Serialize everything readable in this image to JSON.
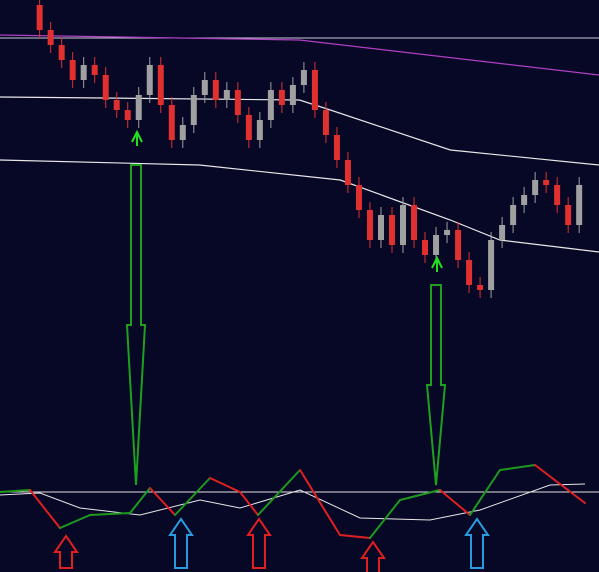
{
  "chart_data": [
    {
      "type": "candlestick",
      "ylim": [
        0,
        300
      ],
      "xlim": [
        -3.6,
        50.8
      ],
      "up_color": "#a0a0a0",
      "down_color": "#e03030",
      "open": [
        295,
        270,
        255,
        240,
        220,
        235,
        225,
        200,
        190,
        180,
        205,
        235,
        195,
        160,
        175,
        205,
        220,
        200,
        210,
        185,
        160,
        180,
        210,
        195,
        215,
        230,
        190,
        165,
        140,
        115,
        90,
        60,
        85,
        55,
        95,
        60,
        45,
        65,
        70,
        40,
        15,
        10,
        60,
        75,
        95,
        105,
        120,
        115,
        95,
        75
      ],
      "high": [
        303,
        278,
        263,
        248,
        243,
        243,
        233,
        208,
        198,
        213,
        243,
        243,
        203,
        183,
        213,
        228,
        228,
        218,
        218,
        193,
        188,
        218,
        218,
        223,
        238,
        238,
        198,
        173,
        148,
        123,
        98,
        93,
        93,
        103,
        103,
        68,
        73,
        78,
        78,
        48,
        23,
        68,
        83,
        103,
        113,
        128,
        128,
        123,
        103,
        123
      ],
      "low": [
        262,
        247,
        232,
        212,
        212,
        217,
        192,
        182,
        172,
        172,
        197,
        187,
        152,
        152,
        167,
        197,
        192,
        192,
        177,
        152,
        152,
        172,
        187,
        187,
        207,
        182,
        157,
        132,
        107,
        82,
        52,
        52,
        47,
        47,
        52,
        37,
        37,
        57,
        32,
        7,
        2,
        2,
        52,
        67,
        87,
        97,
        107,
        87,
        67,
        67
      ],
      "close": [
        270,
        255,
        240,
        220,
        235,
        225,
        200,
        190,
        180,
        205,
        235,
        195,
        160,
        175,
        205,
        220,
        200,
        210,
        185,
        160,
        180,
        210,
        195,
        215,
        230,
        190,
        165,
        140,
        115,
        90,
        60,
        85,
        55,
        95,
        60,
        45,
        65,
        70,
        40,
        15,
        10,
        60,
        75,
        95,
        105,
        120,
        115,
        95,
        75,
        115
      ],
      "hline": {
        "color": "#c8c8d8",
        "value": 262
      },
      "series": [
        {
          "color": "#b040c0",
          "x": [
            -3.6,
            23.6,
            50.8
          ],
          "values": [
            265,
            260,
            225
          ]
        },
        {
          "color": "#e8e8e8",
          "x": [
            -3.6,
            23.6,
            26.4,
            37.3,
            50.8
          ],
          "values": [
            203,
            200,
            190,
            150,
            135
          ]
        },
        {
          "color": "#e8e8e8",
          "x": [
            -3.6,
            14.5,
            27.3,
            37.3,
            41.8,
            50.8
          ],
          "values": [
            140,
            135,
            120,
            80,
            60,
            48
          ]
        }
      ]
    },
    {
      "type": "line",
      "ylim": [
        0,
        112
      ],
      "xlim": [
        0,
        599
      ],
      "hline": {
        "color": "#e0e0e0",
        "value": 80
      },
      "rise_color": "#1e9a1e",
      "fall_color": "#e02020",
      "x": [
        0,
        30,
        60,
        90,
        130,
        150,
        175,
        210,
        240,
        258,
        300,
        340,
        370,
        400,
        440,
        470,
        500,
        535,
        585
      ],
      "values": [
        80,
        82,
        44,
        57,
        59,
        84,
        57,
        94,
        80,
        57,
        102,
        37,
        34,
        72,
        82,
        57,
        102,
        107,
        69
      ],
      "signal": {
        "color": "#e8e8e8",
        "x": [
          0,
          40,
          80,
          140,
          200,
          240,
          300,
          360,
          430,
          480,
          550,
          585
        ],
        "values": [
          77,
          79,
          64,
          57,
          72,
          64,
          82,
          54,
          52,
          62,
          87,
          88
        ]
      }
    }
  ]
}
